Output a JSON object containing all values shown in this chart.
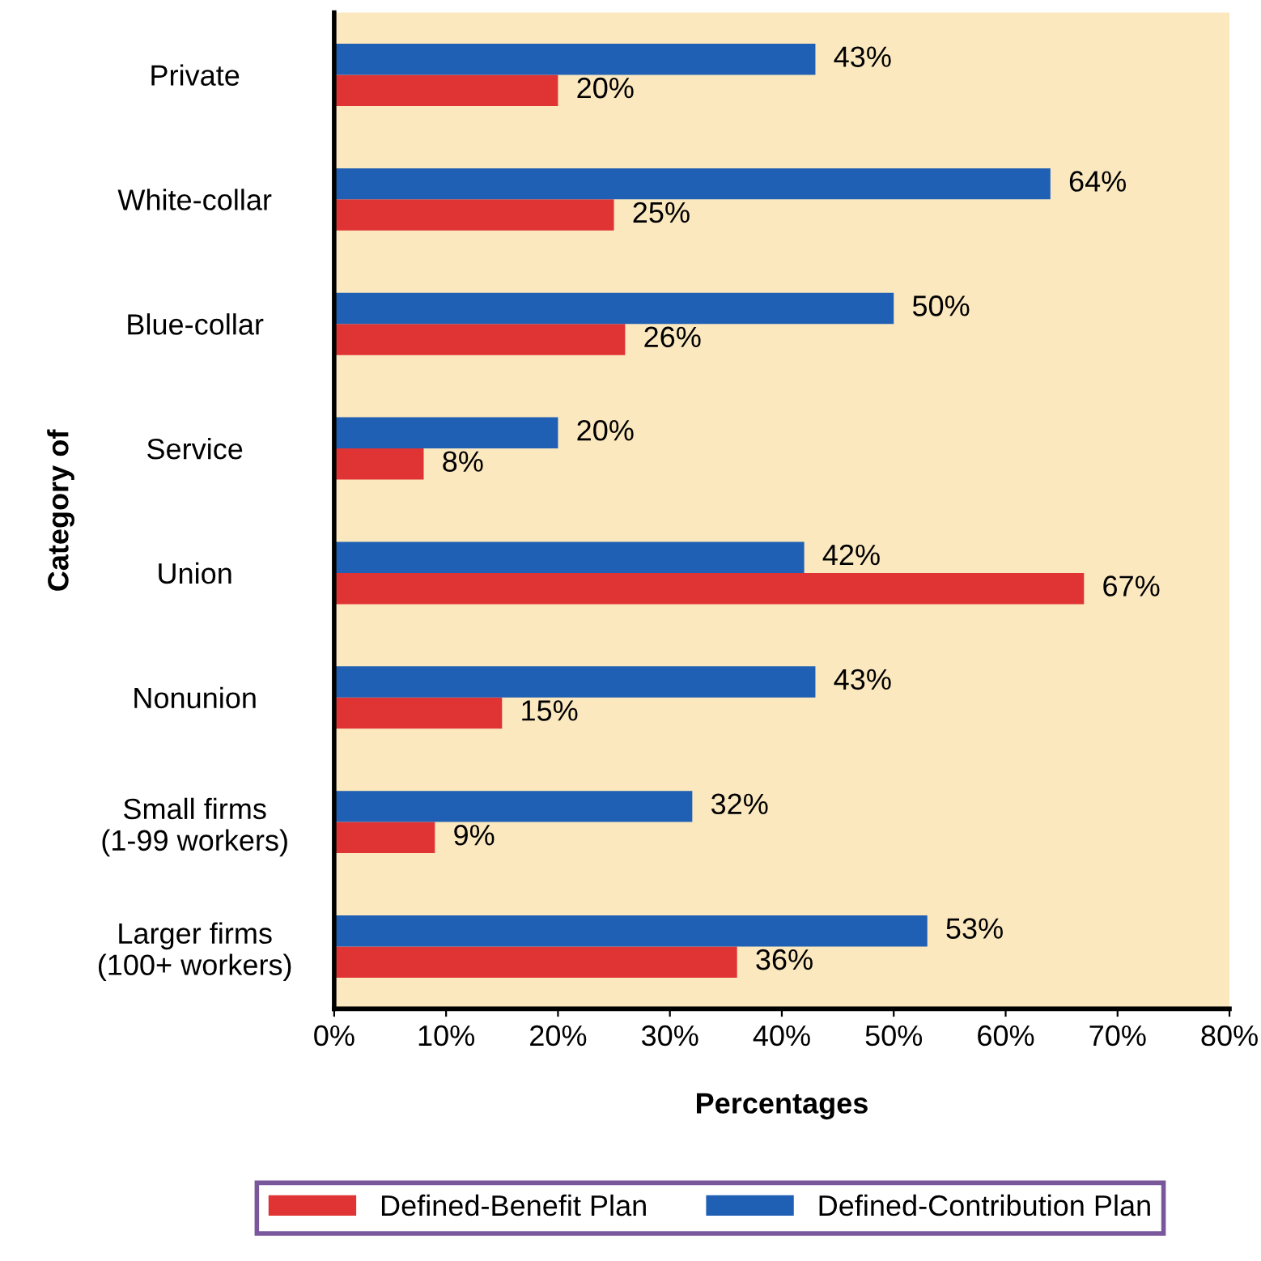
{
  "chart_data": {
    "type": "bar",
    "orientation": "horizontal",
    "xlabel": "Percentages",
    "ylabel": "Category of",
    "categories": [
      "Private",
      "White-collar",
      "Blue-collar",
      "Service",
      "Union",
      "Nonunion",
      "Small firms\n(1-99 workers)",
      "Larger firms\n(100+ workers)"
    ],
    "series": [
      {
        "name": "Defined-Benefit Plan",
        "color": "#e03434",
        "values": [
          20,
          25,
          26,
          8,
          67,
          15,
          9,
          36
        ],
        "value_labels": [
          "20%",
          "25%",
          "26%",
          "8%",
          "67%",
          "15%",
          "9%",
          "36%"
        ]
      },
      {
        "name": "Defined-Contribution Plan",
        "color": "#1f5fb4",
        "values": [
          43,
          64,
          50,
          20,
          42,
          43,
          32,
          53
        ],
        "value_labels": [
          "43%",
          "64%",
          "50%",
          "20%",
          "42%",
          "43%",
          "32%",
          "53%"
        ]
      }
    ],
    "xlim": [
      0,
      80
    ],
    "xticks": [
      {
        "value": 0,
        "label": "0%"
      },
      {
        "value": 10,
        "label": "10%"
      },
      {
        "value": 20,
        "label": "20%"
      },
      {
        "value": 30,
        "label": "30%"
      },
      {
        "value": 40,
        "label": "40%"
      },
      {
        "value": 50,
        "label": "50%"
      },
      {
        "value": 60,
        "label": "60%"
      },
      {
        "value": 70,
        "label": "70%"
      },
      {
        "value": 80,
        "label": "80%"
      }
    ],
    "grid": false,
    "legend": "bottom"
  }
}
